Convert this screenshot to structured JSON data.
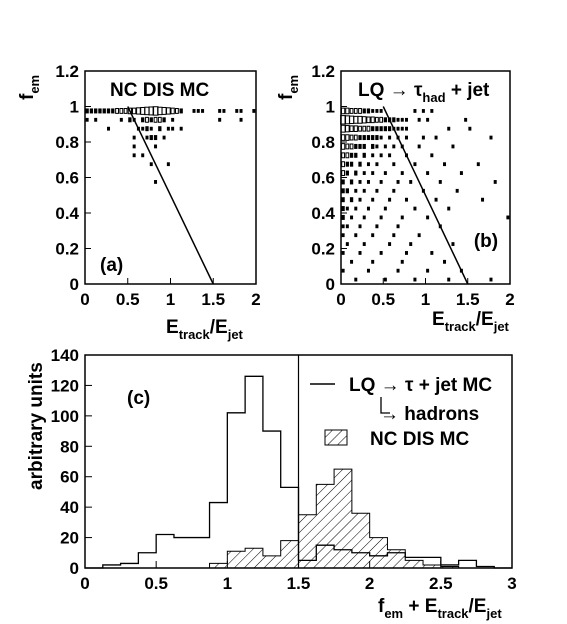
{
  "chart_data": [
    {
      "type": "box",
      "panel": "(a)",
      "title": "NC DIS MC",
      "xlabel": "E_track/E_jet",
      "ylabel": "f_em",
      "xlim": [
        0,
        2
      ],
      "ylim": [
        0,
        1.2
      ],
      "xticks": [
        "0",
        "0.5",
        "1",
        "1.5",
        "2"
      ],
      "yticks": [
        "0",
        "0.2",
        "0.4",
        "0.6",
        "0.8",
        "1",
        "1.2"
      ],
      "cut_line": [
        [
          0.5,
          1.0
        ],
        [
          1.5,
          0.0
        ]
      ],
      "cells": [
        [
          0.025,
          0.975,
          2
        ],
        [
          0.075,
          0.975,
          2
        ],
        [
          0.125,
          0.975,
          2
        ],
        [
          0.175,
          0.975,
          2
        ],
        [
          0.225,
          0.975,
          2
        ],
        [
          0.275,
          0.975,
          2
        ],
        [
          0.325,
          0.975,
          2
        ],
        [
          0.375,
          0.975,
          3
        ],
        [
          0.425,
          0.975,
          3
        ],
        [
          0.475,
          0.975,
          3
        ],
        [
          0.525,
          0.975,
          4
        ],
        [
          0.575,
          0.975,
          4
        ],
        [
          0.625,
          0.975,
          5
        ],
        [
          0.675,
          0.975,
          6
        ],
        [
          0.725,
          0.975,
          7
        ],
        [
          0.775,
          0.975,
          8
        ],
        [
          0.825,
          0.975,
          9
        ],
        [
          0.875,
          0.975,
          7
        ],
        [
          0.925,
          0.975,
          6
        ],
        [
          0.975,
          0.975,
          5
        ],
        [
          1.025,
          0.975,
          4
        ],
        [
          1.075,
          0.975,
          3
        ],
        [
          1.125,
          0.975,
          2
        ],
        [
          1.275,
          0.975,
          1
        ],
        [
          1.325,
          0.975,
          1
        ],
        [
          1.375,
          0.975,
          1
        ],
        [
          1.575,
          0.975,
          1
        ],
        [
          1.625,
          0.975,
          1
        ],
        [
          1.775,
          0.975,
          1
        ],
        [
          1.825,
          0.975,
          1
        ],
        [
          1.975,
          0.975,
          1
        ],
        [
          0.025,
          0.925,
          1
        ],
        [
          0.125,
          0.925,
          1
        ],
        [
          0.425,
          0.925,
          1
        ],
        [
          0.525,
          0.925,
          2
        ],
        [
          0.575,
          0.925,
          1
        ],
        [
          0.675,
          0.925,
          2
        ],
        [
          0.725,
          0.925,
          3
        ],
        [
          0.775,
          0.925,
          2
        ],
        [
          0.825,
          0.925,
          3
        ],
        [
          0.875,
          0.925,
          3
        ],
        [
          0.925,
          0.925,
          2
        ],
        [
          1.025,
          0.925,
          1
        ],
        [
          1.575,
          0.925,
          1
        ],
        [
          1.825,
          0.925,
          1
        ],
        [
          0.275,
          0.875,
          1
        ],
        [
          0.625,
          0.875,
          1
        ],
        [
          0.675,
          0.875,
          1
        ],
        [
          0.725,
          0.875,
          2
        ],
        [
          0.775,
          0.875,
          1
        ],
        [
          0.875,
          0.875,
          2
        ],
        [
          0.975,
          0.875,
          1
        ],
        [
          1.025,
          0.875,
          1
        ],
        [
          1.125,
          0.875,
          1
        ],
        [
          0.575,
          0.825,
          1
        ],
        [
          0.725,
          0.825,
          1
        ],
        [
          0.775,
          0.825,
          2
        ],
        [
          0.825,
          0.825,
          2
        ],
        [
          0.925,
          0.825,
          1
        ],
        [
          0.575,
          0.775,
          1
        ],
        [
          0.825,
          0.775,
          1
        ],
        [
          0.575,
          0.725,
          1
        ],
        [
          0.675,
          0.725,
          1
        ],
        [
          0.775,
          0.675,
          1
        ],
        [
          0.975,
          0.675,
          1
        ],
        [
          0.825,
          0.575,
          1
        ]
      ]
    },
    {
      "type": "box",
      "panel": "(b)",
      "title": "LQ → τ_had + jet",
      "xlabel": "E_track/E_jet",
      "ylabel": "f_em",
      "xlim": [
        0,
        2
      ],
      "ylim": [
        0,
        1.2
      ],
      "xticks": [
        "0",
        "0.5",
        "1",
        "1.5",
        "2"
      ],
      "yticks": [
        "0",
        "0.2",
        "0.4",
        "0.6",
        "0.8",
        "1",
        "1.2"
      ],
      "cut_line": [
        [
          0.5,
          1.0
        ],
        [
          1.5,
          0.0
        ]
      ],
      "cells": [
        [
          0.025,
          0.975,
          4
        ],
        [
          0.075,
          0.975,
          4
        ],
        [
          0.125,
          0.975,
          3
        ],
        [
          0.175,
          0.975,
          3
        ],
        [
          0.225,
          0.975,
          3
        ],
        [
          0.275,
          0.975,
          2
        ],
        [
          0.325,
          0.975,
          2
        ],
        [
          0.375,
          0.975,
          1
        ],
        [
          0.425,
          0.975,
          1
        ],
        [
          0.475,
          0.975,
          1
        ],
        [
          0.875,
          0.975,
          1
        ],
        [
          0.975,
          0.975,
          1
        ],
        [
          1.075,
          0.975,
          1
        ],
        [
          0.025,
          0.925,
          9
        ],
        [
          0.075,
          0.925,
          8
        ],
        [
          0.125,
          0.925,
          7
        ],
        [
          0.175,
          0.925,
          6
        ],
        [
          0.225,
          0.925,
          6
        ],
        [
          0.275,
          0.925,
          5
        ],
        [
          0.325,
          0.925,
          4
        ],
        [
          0.375,
          0.925,
          4
        ],
        [
          0.425,
          0.925,
          3
        ],
        [
          0.475,
          0.925,
          3
        ],
        [
          0.525,
          0.925,
          2
        ],
        [
          0.575,
          0.925,
          2
        ],
        [
          0.625,
          0.925,
          2
        ],
        [
          0.675,
          0.925,
          1
        ],
        [
          0.725,
          0.925,
          1
        ],
        [
          0.775,
          0.925,
          1
        ],
        [
          0.925,
          0.925,
          1
        ],
        [
          1.025,
          0.925,
          1
        ],
        [
          1.475,
          0.925,
          1
        ],
        [
          0.025,
          0.875,
          6
        ],
        [
          0.075,
          0.875,
          5
        ],
        [
          0.125,
          0.875,
          4
        ],
        [
          0.175,
          0.875,
          4
        ],
        [
          0.225,
          0.875,
          3
        ],
        [
          0.275,
          0.875,
          3
        ],
        [
          0.325,
          0.875,
          3
        ],
        [
          0.375,
          0.875,
          2
        ],
        [
          0.425,
          0.875,
          2
        ],
        [
          0.475,
          0.875,
          2
        ],
        [
          0.525,
          0.875,
          2
        ],
        [
          0.575,
          0.875,
          2
        ],
        [
          0.625,
          0.875,
          1
        ],
        [
          0.675,
          0.875,
          1
        ],
        [
          0.725,
          0.875,
          1
        ],
        [
          0.775,
          0.875,
          1
        ],
        [
          1.275,
          0.875,
          1
        ],
        [
          1.525,
          0.875,
          1
        ],
        [
          0.025,
          0.825,
          4
        ],
        [
          0.075,
          0.825,
          4
        ],
        [
          0.125,
          0.825,
          3
        ],
        [
          0.175,
          0.825,
          3
        ],
        [
          0.225,
          0.825,
          2
        ],
        [
          0.275,
          0.825,
          2
        ],
        [
          0.325,
          0.825,
          2
        ],
        [
          0.375,
          0.825,
          2
        ],
        [
          0.425,
          0.825,
          2
        ],
        [
          0.475,
          0.825,
          1
        ],
        [
          0.575,
          0.825,
          1
        ],
        [
          0.675,
          0.825,
          1
        ],
        [
          0.775,
          0.825,
          1
        ],
        [
          0.975,
          0.825,
          1
        ],
        [
          1.125,
          0.825,
          1
        ],
        [
          1.775,
          0.825,
          1
        ],
        [
          0.025,
          0.775,
          4
        ],
        [
          0.075,
          0.775,
          3
        ],
        [
          0.125,
          0.775,
          3
        ],
        [
          0.175,
          0.775,
          2
        ],
        [
          0.225,
          0.775,
          2
        ],
        [
          0.275,
          0.775,
          2
        ],
        [
          0.375,
          0.775,
          2
        ],
        [
          0.425,
          0.775,
          1
        ],
        [
          0.525,
          0.775,
          1
        ],
        [
          0.625,
          0.775,
          1
        ],
        [
          0.725,
          0.775,
          1
        ],
        [
          0.925,
          0.775,
          1
        ],
        [
          1.325,
          0.775,
          1
        ],
        [
          0.025,
          0.725,
          3
        ],
        [
          0.075,
          0.725,
          3
        ],
        [
          0.125,
          0.725,
          2
        ],
        [
          0.175,
          0.725,
          2
        ],
        [
          0.275,
          0.725,
          2
        ],
        [
          0.375,
          0.725,
          1
        ],
        [
          0.475,
          0.725,
          1
        ],
        [
          0.575,
          0.725,
          1
        ],
        [
          0.775,
          0.725,
          1
        ],
        [
          1.075,
          0.725,
          1
        ],
        [
          0.025,
          0.675,
          3
        ],
        [
          0.075,
          0.675,
          2
        ],
        [
          0.125,
          0.675,
          2
        ],
        [
          0.225,
          0.675,
          2
        ],
        [
          0.325,
          0.675,
          1
        ],
        [
          0.425,
          0.675,
          1
        ],
        [
          0.625,
          0.675,
          1
        ],
        [
          0.875,
          0.675,
          1
        ],
        [
          1.225,
          0.675,
          1
        ],
        [
          1.625,
          0.675,
          1
        ],
        [
          0.025,
          0.625,
          3
        ],
        [
          0.075,
          0.625,
          2
        ],
        [
          0.175,
          0.625,
          2
        ],
        [
          0.275,
          0.625,
          1
        ],
        [
          0.375,
          0.625,
          1
        ],
        [
          0.525,
          0.625,
          1
        ],
        [
          0.725,
          0.625,
          1
        ],
        [
          1.025,
          0.625,
          1
        ],
        [
          1.425,
          0.625,
          1
        ],
        [
          0.025,
          0.575,
          2
        ],
        [
          0.125,
          0.575,
          2
        ],
        [
          0.225,
          0.575,
          1
        ],
        [
          0.325,
          0.575,
          1
        ],
        [
          0.475,
          0.575,
          1
        ],
        [
          0.675,
          0.575,
          1
        ],
        [
          0.825,
          0.575,
          1
        ],
        [
          1.175,
          0.575,
          1
        ],
        [
          1.825,
          0.575,
          1
        ],
        [
          0.025,
          0.525,
          2
        ],
        [
          0.075,
          0.525,
          2
        ],
        [
          0.175,
          0.525,
          1
        ],
        [
          0.275,
          0.525,
          1
        ],
        [
          0.425,
          0.525,
          1
        ],
        [
          0.625,
          0.525,
          1
        ],
        [
          0.975,
          0.525,
          1
        ],
        [
          1.375,
          0.525,
          1
        ],
        [
          0.025,
          0.475,
          2
        ],
        [
          0.125,
          0.475,
          2
        ],
        [
          0.225,
          0.475,
          1
        ],
        [
          0.375,
          0.475,
          1
        ],
        [
          0.575,
          0.475,
          1
        ],
        [
          0.775,
          0.475,
          1
        ],
        [
          1.125,
          0.475,
          1
        ],
        [
          1.675,
          0.475,
          1
        ],
        [
          0.025,
          0.425,
          2
        ],
        [
          0.075,
          0.425,
          1
        ],
        [
          0.175,
          0.425,
          1
        ],
        [
          0.325,
          0.425,
          1
        ],
        [
          0.525,
          0.425,
          1
        ],
        [
          0.875,
          0.425,
          1
        ],
        [
          1.275,
          0.425,
          1
        ],
        [
          0.025,
          0.375,
          2
        ],
        [
          0.125,
          0.375,
          1
        ],
        [
          0.275,
          0.375,
          1
        ],
        [
          0.475,
          0.375,
          1
        ],
        [
          0.725,
          0.375,
          1
        ],
        [
          1.025,
          0.375,
          1
        ],
        [
          1.975,
          0.375,
          1
        ],
        [
          0.025,
          0.325,
          1
        ],
        [
          0.075,
          0.325,
          1
        ],
        [
          0.225,
          0.325,
          1
        ],
        [
          0.425,
          0.325,
          1
        ],
        [
          0.675,
          0.325,
          1
        ],
        [
          1.175,
          0.325,
          1
        ],
        [
          0.025,
          0.275,
          1
        ],
        [
          0.175,
          0.275,
          1
        ],
        [
          0.375,
          0.275,
          1
        ],
        [
          0.625,
          0.275,
          1
        ],
        [
          0.925,
          0.275,
          1
        ],
        [
          0.075,
          0.225,
          1
        ],
        [
          0.275,
          0.225,
          1
        ],
        [
          0.575,
          0.225,
          1
        ],
        [
          0.825,
          0.225,
          1
        ],
        [
          1.325,
          0.225,
          1
        ],
        [
          0.025,
          0.175,
          1
        ],
        [
          0.225,
          0.175,
          1
        ],
        [
          0.475,
          0.175,
          1
        ],
        [
          0.775,
          0.175,
          1
        ],
        [
          1.075,
          0.175,
          1
        ],
        [
          0.125,
          0.125,
          1
        ],
        [
          0.375,
          0.125,
          1
        ],
        [
          0.725,
          0.125,
          1
        ],
        [
          1.225,
          0.125,
          1
        ],
        [
          0.025,
          0.075,
          1
        ],
        [
          0.325,
          0.075,
          1
        ],
        [
          0.675,
          0.075,
          1
        ],
        [
          1.025,
          0.075,
          1
        ],
        [
          1.425,
          0.075,
          1
        ],
        [
          0.175,
          0.025,
          1
        ],
        [
          0.525,
          0.025,
          1
        ],
        [
          0.875,
          0.025,
          1
        ],
        [
          1.275,
          0.025,
          1
        ],
        [
          1.775,
          0.025,
          1
        ]
      ]
    },
    {
      "type": "histogram",
      "panel": "(c)",
      "xlabel": "f_em + E_track/E_jet",
      "ylabel": "arbitrary units",
      "xlim": [
        0,
        3
      ],
      "ylim": [
        0,
        140
      ],
      "xticks": [
        "0",
        "0.5",
        "1",
        "1.5",
        "2",
        "2.5",
        "3"
      ],
      "yticks": [
        "0",
        "20",
        "40",
        "60",
        "80",
        "100",
        "120",
        "140"
      ],
      "cut_x": 1.5,
      "bin_edges": [
        0.0,
        0.125,
        0.25,
        0.375,
        0.5,
        0.625,
        0.75,
        0.875,
        1.0,
        1.125,
        1.25,
        1.375,
        1.5,
        1.625,
        1.75,
        1.875,
        2.0,
        2.125,
        2.25,
        2.375,
        2.5,
        2.625,
        2.75,
        2.875,
        3.0
      ],
      "series": [
        {
          "name": "LQ → τ + jet  MC",
          "style": "line",
          "values": [
            0,
            2,
            3,
            10,
            22,
            20,
            20,
            43,
            102,
            126,
            90,
            53,
            5,
            15,
            12,
            10,
            8,
            10,
            7,
            7,
            2,
            5,
            1,
            0
          ]
        },
        {
          "name": "NC DIS  MC",
          "style": "hatched",
          "values": [
            0,
            0,
            0,
            0,
            0,
            0,
            0,
            3,
            11,
            13,
            8,
            18,
            35,
            55,
            65,
            36,
            20,
            12,
            5,
            2,
            1,
            0,
            0,
            0
          ]
        }
      ],
      "legend_extra": "→ hadrons"
    }
  ]
}
